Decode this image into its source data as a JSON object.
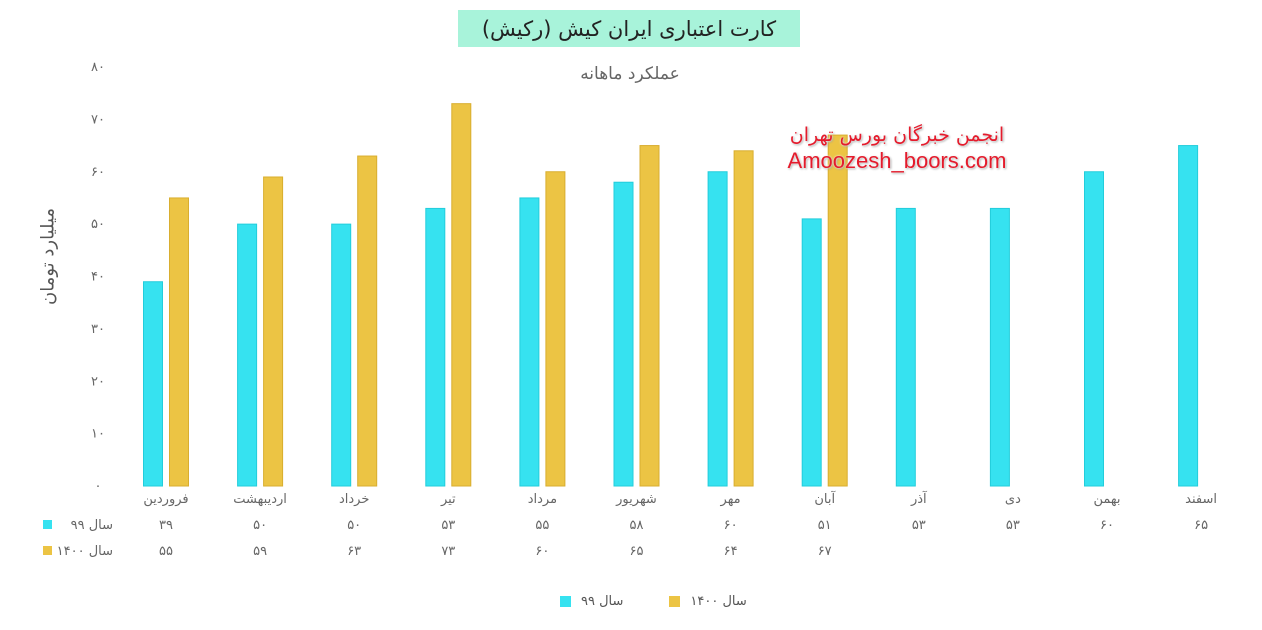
{
  "chart_data": {
    "type": "bar",
    "title": "کارت اعتباری ایران کیش (رکیش)",
    "subtitle": "عملکرد ماهانه",
    "ylabel": "میلیارد تومان",
    "ylim": [
      0,
      80
    ],
    "yticks": [
      "۰",
      "۱۰",
      "۲۰",
      "۳۰",
      "۴۰",
      "۵۰",
      "۶۰",
      "۷۰",
      "۸۰"
    ],
    "categories": [
      "فروردین",
      "اردیبهشت",
      "خرداد",
      "تیر",
      "مرداد",
      "شهریور",
      "مهر",
      "آبان",
      "آذر",
      "دی",
      "بهمن",
      "اسفند"
    ],
    "series": [
      {
        "name": "سال ۹۹",
        "color": "#36e2f0",
        "values": [
          39,
          50,
          50,
          53,
          55,
          58,
          60,
          51,
          53,
          53,
          60,
          65
        ],
        "labels": [
          "۳۹",
          "۵۰",
          "۵۰",
          "۵۳",
          "۵۵",
          "۵۸",
          "۶۰",
          "۵۱",
          "۵۳",
          "۵۳",
          "۶۰",
          "۶۵"
        ]
      },
      {
        "name": "سال ۱۴۰۰",
        "color": "#ecc444",
        "values": [
          55,
          59,
          63,
          73,
          60,
          65,
          64,
          67,
          null,
          null,
          null,
          null
        ],
        "labels": [
          "۵۵",
          "۵۹",
          "۶۳",
          "۷۳",
          "۶۰",
          "۶۵",
          "۶۴",
          "۶۷",
          "",
          "",
          "",
          ""
        ]
      }
    ],
    "grid": false,
    "legend_position": "bottom"
  },
  "watermark": {
    "line1": "انجمن خبرگان بورس تهران",
    "line2": "Amoozesh_boors.com"
  }
}
